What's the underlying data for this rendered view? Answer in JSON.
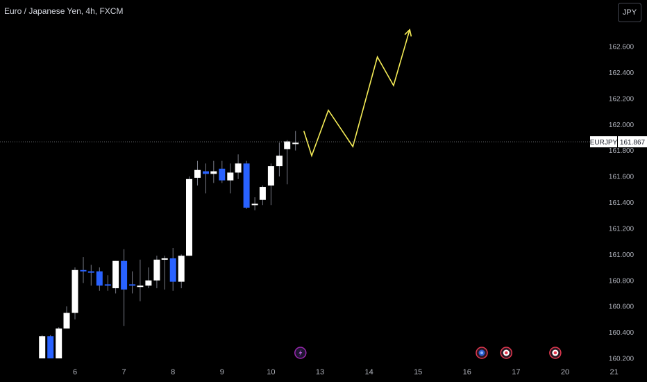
{
  "header": {
    "title": "Euro / Japanese Yen, 4h, FXCM",
    "currency_button": "JPY"
  },
  "price_tag": {
    "symbol": "EURJPY",
    "price": "161.867",
    "value": 161.867
  },
  "colors": {
    "bull": "#ffffff",
    "bear": "#2962ff",
    "wick": "#787b86",
    "projection": "#f6ed57",
    "axis_text": "#b2b5be"
  },
  "events": [
    {
      "icon": "lightning-icon",
      "time": 10.6
    },
    {
      "icon": "cog-event-icon",
      "time": 14.3
    },
    {
      "icon": "target-event-icon",
      "time": 14.8
    },
    {
      "icon": "target-event-icon",
      "time": 15.8
    }
  ],
  "chart_data": {
    "type": "candlestick",
    "ylim": [
      160.2,
      162.6
    ],
    "y_ticks": [
      "162.600",
      "162.400",
      "162.200",
      "162.000",
      "161.800",
      "161.600",
      "161.400",
      "161.200",
      "161.000",
      "160.800",
      "160.600",
      "160.400",
      "160.200"
    ],
    "y_tick_values": [
      162.6,
      162.4,
      162.2,
      162.0,
      161.8,
      161.6,
      161.4,
      161.2,
      161.0,
      160.8,
      160.6,
      160.4,
      160.2
    ],
    "x_ticks": [
      "6",
      "7",
      "8",
      "9",
      "10",
      "13",
      "14",
      "15",
      "16",
      "17",
      "20",
      "21"
    ],
    "x_tick_values": [
      6,
      7,
      8,
      9,
      10,
      11,
      12,
      13,
      14,
      15,
      16,
      17
    ],
    "candles": [
      {
        "t": 5.33,
        "o": 160.2,
        "h": 160.38,
        "l": 160.2,
        "c": 160.37
      },
      {
        "t": 5.5,
        "o": 160.37,
        "h": 160.38,
        "l": 160.2,
        "c": 160.2
      },
      {
        "t": 5.67,
        "o": 160.2,
        "h": 160.44,
        "l": 160.2,
        "c": 160.43
      },
      {
        "t": 5.83,
        "o": 160.43,
        "h": 160.6,
        "l": 160.43,
        "c": 160.55
      },
      {
        "t": 6.0,
        "o": 160.55,
        "h": 160.9,
        "l": 160.5,
        "c": 160.88
      },
      {
        "t": 6.17,
        "o": 160.88,
        "h": 160.98,
        "l": 160.78,
        "c": 160.87
      },
      {
        "t": 6.33,
        "o": 160.87,
        "h": 160.92,
        "l": 160.76,
        "c": 160.86
      },
      {
        "t": 6.5,
        "o": 160.87,
        "h": 160.9,
        "l": 160.72,
        "c": 160.76
      },
      {
        "t": 6.67,
        "o": 160.77,
        "h": 160.84,
        "l": 160.72,
        "c": 160.76
      },
      {
        "t": 6.83,
        "o": 160.74,
        "h": 160.95,
        "l": 160.7,
        "c": 160.95
      },
      {
        "t": 7.0,
        "o": 160.95,
        "h": 161.04,
        "l": 160.45,
        "c": 160.73
      },
      {
        "t": 7.17,
        "o": 160.77,
        "h": 160.87,
        "l": 160.7,
        "c": 160.76
      },
      {
        "t": 7.33,
        "o": 160.76,
        "h": 160.96,
        "l": 160.64,
        "c": 160.76
      },
      {
        "t": 7.5,
        "o": 160.76,
        "h": 160.9,
        "l": 160.74,
        "c": 160.8
      },
      {
        "t": 7.67,
        "o": 160.8,
        "h": 160.99,
        "l": 160.74,
        "c": 160.96
      },
      {
        "t": 7.83,
        "o": 160.96,
        "h": 160.99,
        "l": 160.73,
        "c": 160.97
      },
      {
        "t": 8.0,
        "o": 160.97,
        "h": 161.05,
        "l": 160.72,
        "c": 160.79
      },
      {
        "t": 8.17,
        "o": 160.79,
        "h": 161.0,
        "l": 160.74,
        "c": 160.99
      },
      {
        "t": 8.33,
        "o": 160.99,
        "h": 161.6,
        "l": 160.99,
        "c": 161.58
      },
      {
        "t": 8.5,
        "o": 161.59,
        "h": 161.72,
        "l": 161.53,
        "c": 161.65
      },
      {
        "t": 8.67,
        "o": 161.64,
        "h": 161.7,
        "l": 161.47,
        "c": 161.62
      },
      {
        "t": 8.83,
        "o": 161.62,
        "h": 161.72,
        "l": 161.55,
        "c": 161.64
      },
      {
        "t": 9.0,
        "o": 161.66,
        "h": 161.72,
        "l": 161.55,
        "c": 161.57
      },
      {
        "t": 9.17,
        "o": 161.57,
        "h": 161.7,
        "l": 161.47,
        "c": 161.63
      },
      {
        "t": 9.33,
        "o": 161.63,
        "h": 161.77,
        "l": 161.58,
        "c": 161.7
      },
      {
        "t": 9.5,
        "o": 161.7,
        "h": 161.72,
        "l": 161.35,
        "c": 161.36
      },
      {
        "t": 9.67,
        "o": 161.39,
        "h": 161.44,
        "l": 161.34,
        "c": 161.39
      },
      {
        "t": 9.83,
        "o": 161.42,
        "h": 161.53,
        "l": 161.38,
        "c": 161.52
      },
      {
        "t": 10.0,
        "o": 161.53,
        "h": 161.7,
        "l": 161.38,
        "c": 161.68
      },
      {
        "t": 10.17,
        "o": 161.68,
        "h": 161.86,
        "l": 161.6,
        "c": 161.76
      },
      {
        "t": 10.33,
        "o": 161.81,
        "h": 161.88,
        "l": 161.54,
        "c": 161.87
      },
      {
        "t": 10.5,
        "o": 161.86,
        "h": 161.95,
        "l": 161.8,
        "c": 161.86
      }
    ],
    "projection": [
      {
        "t": 10.67,
        "v": 161.95
      },
      {
        "t": 10.83,
        "v": 161.76
      },
      {
        "t": 11.17,
        "v": 162.11
      },
      {
        "t": 11.67,
        "v": 161.83
      },
      {
        "t": 12.17,
        "v": 162.52
      },
      {
        "t": 12.5,
        "v": 162.3
      },
      {
        "t": 12.83,
        "v": 162.73
      }
    ]
  }
}
